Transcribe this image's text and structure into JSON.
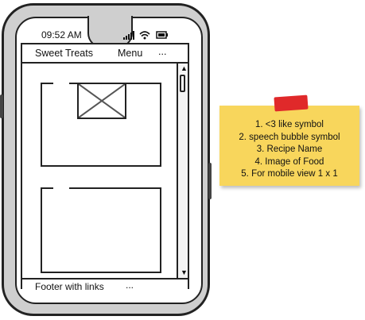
{
  "status_bar": {
    "time": "09:52 AM"
  },
  "navbar": {
    "brand": "Sweet Treats",
    "menu_label": "Menu",
    "more_label": "..."
  },
  "footer": {
    "label": "Footer with links",
    "more_label": "..."
  },
  "sticky_note": {
    "lines": [
      "1. <3 like symbol",
      "2. speech bubble symbol",
      "3. Recipe Name",
      "4. Image of Food",
      "5. For mobile view 1 x 1"
    ]
  },
  "colors": {
    "phone_body": "#cfcfcf",
    "note_background": "#f8d65c",
    "tape": "#e0292a"
  }
}
